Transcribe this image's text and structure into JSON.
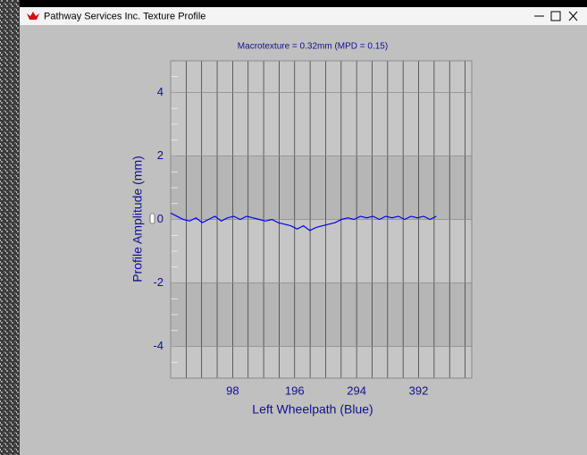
{
  "window": {
    "title": "Pathway Services Inc. Texture Profile"
  },
  "chart_data": {
    "type": "line",
    "title": "Macrotexture = 0.32mm (MPD = 0.15)",
    "x_label": "Left Wheelpath (Blue)",
    "y_label": "Profile Amplitude (mm)",
    "x": [
      0,
      10,
      20,
      30,
      40,
      50,
      60,
      70,
      80,
      90,
      100,
      110,
      120,
      130,
      140,
      150,
      160,
      170,
      180,
      190,
      200,
      210,
      220,
      230,
      240,
      250,
      260,
      270,
      280,
      290,
      300,
      310,
      320,
      330,
      340,
      350,
      360,
      370,
      380,
      390,
      400,
      410,
      420
    ],
    "series": [
      {
        "name": "Left Wheelpath (Blue)",
        "color": "#0000ee",
        "values": [
          0.2,
          0.1,
          0.0,
          -0.05,
          0.05,
          -0.1,
          0.0,
          0.1,
          -0.05,
          0.05,
          0.1,
          0.0,
          0.1,
          0.05,
          0.0,
          -0.05,
          0.0,
          -0.1,
          -0.15,
          -0.2,
          -0.3,
          -0.2,
          -0.35,
          -0.25,
          -0.2,
          -0.15,
          -0.1,
          0.0,
          0.05,
          0.0,
          0.1,
          0.05,
          0.1,
          0.0,
          0.1,
          0.05,
          0.1,
          0.0,
          0.1,
          0.05,
          0.1,
          0.0,
          0.1
        ]
      }
    ],
    "xlim": [
      0,
      476
    ],
    "xticks": [
      98,
      196,
      294,
      392
    ],
    "ylim": [
      -5,
      5
    ],
    "yticks": [
      -4,
      -2,
      0,
      2,
      4
    ],
    "grid": true
  }
}
